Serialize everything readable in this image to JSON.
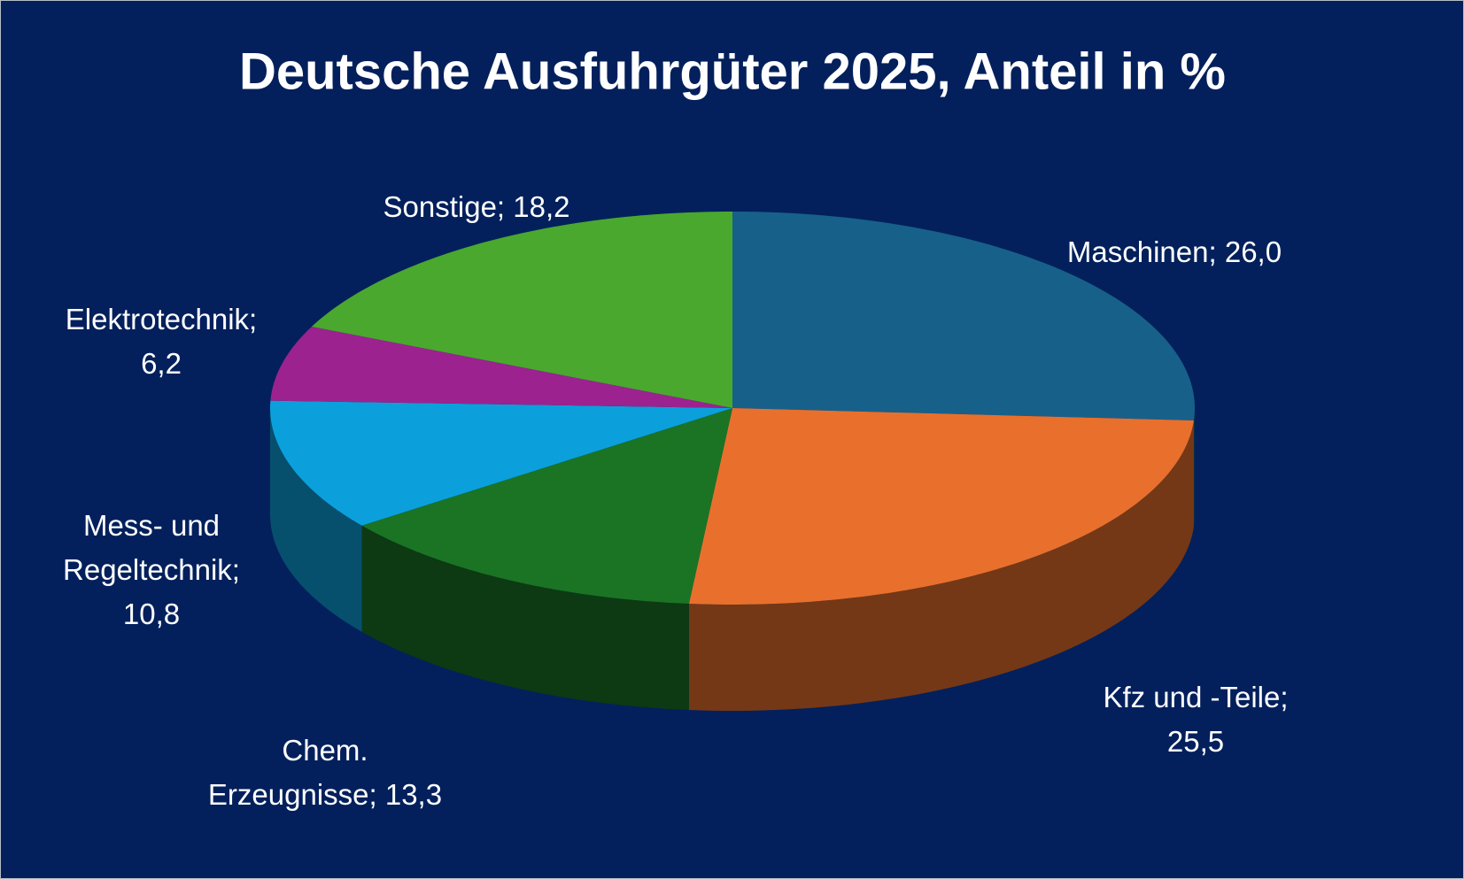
{
  "chart_data": {
    "type": "pie",
    "title": "Deutsche Ausfuhrgüter 2025, Anteil in %",
    "categories": [
      "Maschinen;",
      "Kfz und -Teile;",
      "Chem. Erzeugnisse;",
      "Mess- und Regeltechnik;",
      "Elektrotechnik;",
      "Sonstige;"
    ],
    "values": [
      26.0,
      25.5,
      13.3,
      10.8,
      6.2,
      18.2
    ],
    "value_labels": [
      "26,0",
      "25,5",
      "13,3",
      "10,8",
      "6,2",
      "18,2"
    ],
    "colors": [
      "#17608a",
      "#e8702c",
      "#1a7424",
      "#0ba0dc",
      "#9c2290",
      "#4aa82e"
    ]
  }
}
